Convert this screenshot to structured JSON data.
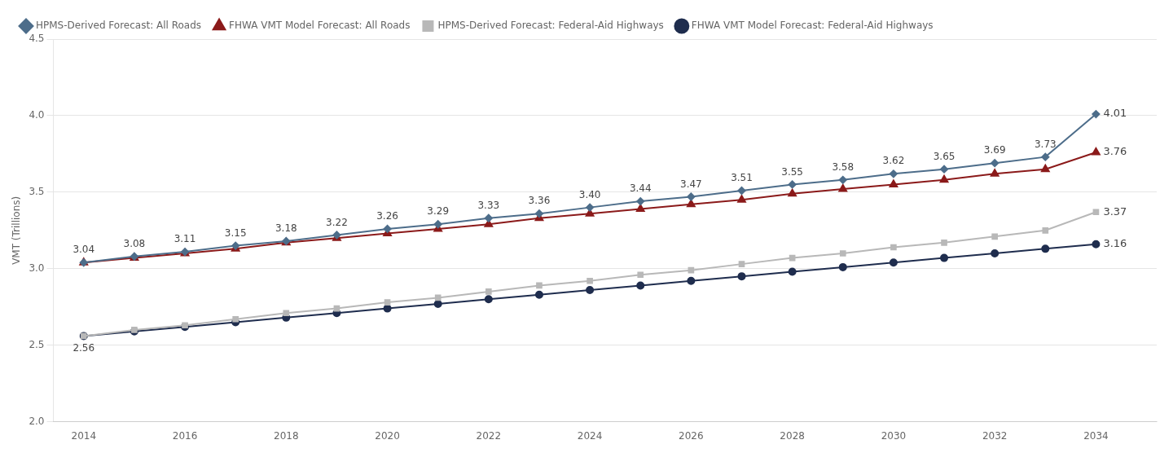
{
  "chart_data": {
    "type": "line",
    "ylabel": "VMT (Trillions)",
    "x": [
      2014,
      2015,
      2016,
      2017,
      2018,
      2019,
      2020,
      2021,
      2022,
      2023,
      2024,
      2025,
      2026,
      2027,
      2028,
      2029,
      2030,
      2031,
      2032,
      2033,
      2034
    ],
    "xlim": [
      2013.4,
      2035.2
    ],
    "xticks": [
      2014,
      2016,
      2018,
      2020,
      2022,
      2024,
      2026,
      2028,
      2030,
      2032,
      2034
    ],
    "ylim": [
      2.0,
      4.5
    ],
    "yticks": [
      {
        "value": 2.0,
        "label": "2.0"
      },
      {
        "value": 2.5,
        "label": "2.5"
      },
      {
        "value": 3.0,
        "label": "3.0"
      },
      {
        "value": 3.5,
        "label": "3.5"
      },
      {
        "value": 4.0,
        "label": "4.0"
      },
      {
        "value": 4.5,
        "label": "4.5"
      }
    ],
    "grid": true,
    "legend": "upper left",
    "data_labels": true,
    "series": [
      {
        "name": "HPMS-Derived Forecast: All Roads",
        "color": "#4d6d8a",
        "marker": "diamond",
        "values": [
          3.04,
          3.08,
          3.11,
          3.15,
          3.18,
          3.22,
          3.26,
          3.29,
          3.33,
          3.36,
          3.4,
          3.44,
          3.47,
          3.51,
          3.55,
          3.58,
          3.62,
          3.65,
          3.69,
          3.73,
          4.01
        ],
        "value_labels": [
          "3.04",
          "3.08",
          "3.11",
          "3.15",
          "3.18",
          "3.22",
          "3.26",
          "3.29",
          "3.33",
          "3.36",
          "3.40",
          "3.44",
          "3.47",
          "3.51",
          "3.55",
          "3.58",
          "3.62",
          "3.65",
          "3.69",
          "3.73",
          "4.01"
        ]
      },
      {
        "name": "FHWA VMT Model Forecast: All Roads",
        "color": "#8b1a1a",
        "marker": "triangle",
        "values": [
          3.04,
          3.07,
          3.1,
          3.13,
          3.17,
          3.2,
          3.23,
          3.26,
          3.29,
          3.33,
          3.36,
          3.39,
          3.42,
          3.45,
          3.49,
          3.52,
          3.55,
          3.58,
          3.62,
          3.65,
          3.76
        ],
        "value_labels": [
          null,
          null,
          null,
          null,
          null,
          null,
          null,
          null,
          null,
          null,
          null,
          null,
          null,
          null,
          null,
          null,
          null,
          null,
          null,
          null,
          "3.76"
        ]
      },
      {
        "name": "HPMS-Derived Forecast: Federal-Aid Highways",
        "color": "#b8b8b8",
        "marker": "square",
        "values": [
          2.56,
          2.6,
          2.63,
          2.67,
          2.71,
          2.74,
          2.78,
          2.81,
          2.85,
          2.89,
          2.92,
          2.96,
          2.99,
          3.03,
          3.07,
          3.1,
          3.14,
          3.17,
          3.21,
          3.25,
          3.37
        ],
        "value_labels": [
          null,
          null,
          null,
          null,
          null,
          null,
          null,
          null,
          null,
          null,
          null,
          null,
          null,
          null,
          null,
          null,
          null,
          null,
          null,
          null,
          "3.37"
        ]
      },
      {
        "name": "FHWA VMT Model Forecast: Federal-Aid Highways",
        "color": "#1f2d4e",
        "marker": "circle",
        "values": [
          2.56,
          2.59,
          2.62,
          2.65,
          2.68,
          2.71,
          2.74,
          2.77,
          2.8,
          2.83,
          2.86,
          2.89,
          2.92,
          2.95,
          2.98,
          3.01,
          3.04,
          3.07,
          3.1,
          3.13,
          3.16
        ],
        "value_labels": [
          "2.56",
          null,
          null,
          null,
          null,
          null,
          null,
          null,
          null,
          null,
          null,
          null,
          null,
          null,
          null,
          null,
          null,
          null,
          null,
          null,
          "3.16"
        ]
      }
    ]
  }
}
